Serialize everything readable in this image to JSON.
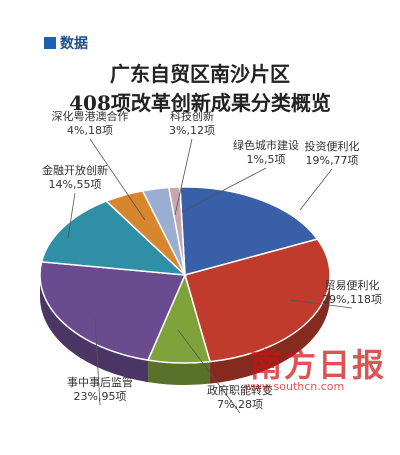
{
  "tag": {
    "label": "数据"
  },
  "title": {
    "line1": "广东自贸区南沙片区",
    "line2": "408项改革创新成果分类概览"
  },
  "watermark": {
    "name": "南方日报",
    "url": "www.southcn.com"
  },
  "chart_data": {
    "type": "pie",
    "title": "广东自贸区南沙片区408项改革创新成果分类概览",
    "total": 408,
    "slices": [
      {
        "name": "投资便利化",
        "percent": 19,
        "value": 77,
        "label": "19%,77项",
        "color": "#3a5fa9"
      },
      {
        "name": "贸易便利化",
        "percent": 29,
        "value": 118,
        "label": "29%,118项",
        "color": "#c03b2c"
      },
      {
        "name": "政府职能转变",
        "percent": 7,
        "value": 28,
        "label": "7%,28项",
        "color": "#7fa33a"
      },
      {
        "name": "事中事后监管",
        "percent": 23,
        "value": 95,
        "label": "23%,95项",
        "color": "#6b4b8f"
      },
      {
        "name": "金融开放创新",
        "percent": 14,
        "value": 55,
        "label": "14%,55项",
        "color": "#2f8fa7"
      },
      {
        "name": "深化粤港澳合作",
        "percent": 4,
        "value": 18,
        "label": "4%,18项",
        "color": "#d8862d"
      },
      {
        "name": "科技创新",
        "percent": 3,
        "value": 12,
        "label": "3%,12项",
        "color": "#9aaed1"
      },
      {
        "name": "绿色城市建设",
        "percent": 1,
        "value": 5,
        "label": "1%,5项",
        "color": "#c9a6ad"
      }
    ]
  }
}
